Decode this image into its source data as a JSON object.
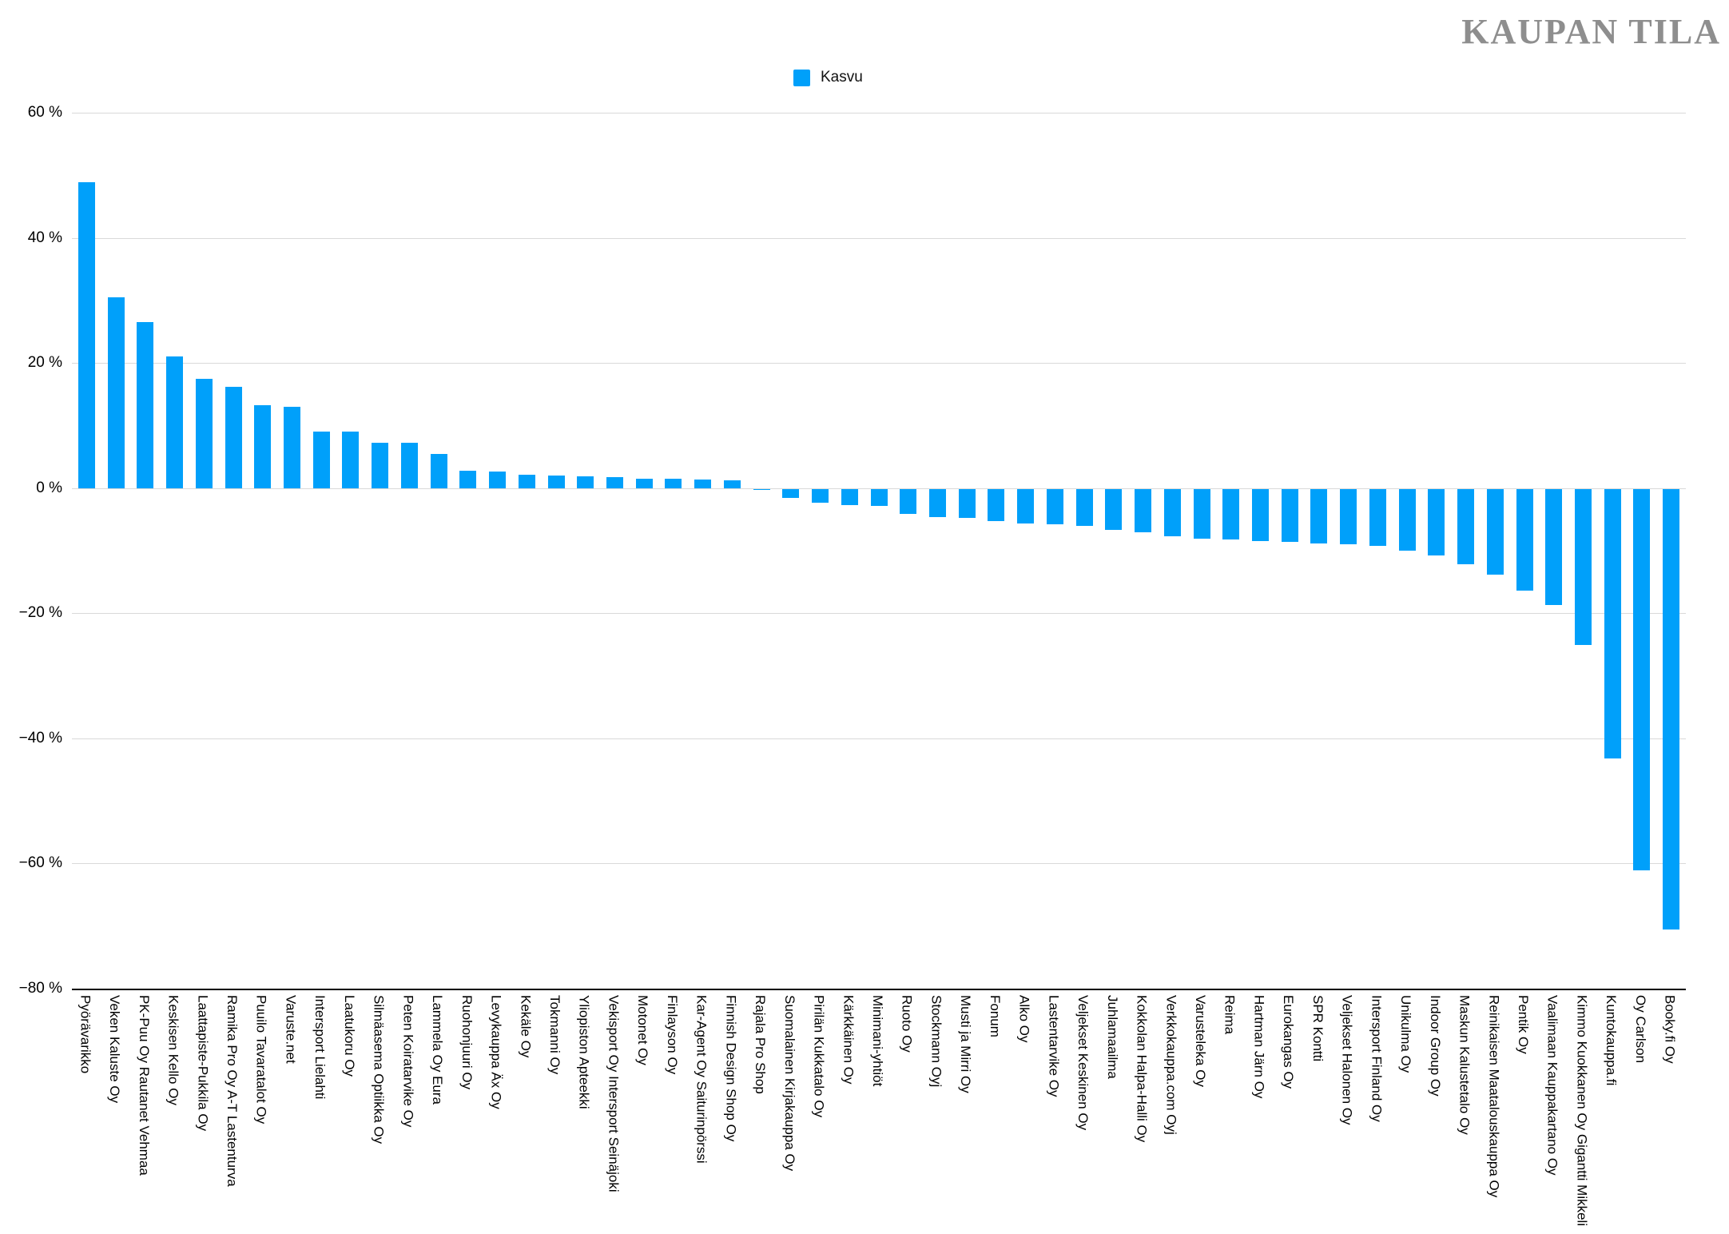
{
  "brand": {
    "title": "KAUPAN TILA"
  },
  "legend": {
    "label": "Kasvu",
    "swatch_color": "#00A0FA"
  },
  "colors": {
    "bar": "#00A0FA",
    "gridline": "#d9d9d9",
    "axis_line": "#000000",
    "title_gray": "#8e8e8e"
  },
  "chart_data": {
    "type": "bar",
    "title": "KAUPAN TILA",
    "legend_entries": [
      "Kasvu"
    ],
    "legend_position": "top-center",
    "grid": true,
    "xlabel": "",
    "ylabel": "",
    "ylim": [
      -80,
      60
    ],
    "yticks": [
      {
        "label": "60 %",
        "value": 60
      },
      {
        "label": "40 %",
        "value": 40
      },
      {
        "label": "20 %",
        "value": 20
      },
      {
        "label": "0 %",
        "value": 0
      },
      {
        "label": "−20 %",
        "value": -20
      },
      {
        "label": "−40 %",
        "value": -40
      },
      {
        "label": "−60 %",
        "value": -60
      },
      {
        "label": "−80 %",
        "value": -80
      }
    ],
    "categories": [
      "Pyörävarikko",
      "Veken Kaluste Oy",
      "PK-Puu Oy Rautanet Vehmaa",
      "Keskisen Kello Oy",
      "Laattapiste-Pukkila Oy",
      "Ramika Pro Oy A-T Lastenturva",
      "Puuilo Tavaratalot Oy",
      "Varuste.net",
      "Intersport Lielahti",
      "Laatukoru Oy",
      "Silmäasema Optiikka Oy",
      "Peten Koiratarvike Oy",
      "Lammela Oy Eura",
      "Ruohonjuuri Oy",
      "Levykauppa Äx Oy",
      "Kekäle Oy",
      "Tokmanni Oy",
      "Yliopiston Apteekki",
      "Vekisport Oy Intersport Seinäjoki",
      "Motonet Oy",
      "Finlayson Oy",
      "Kar-Agent Oy Saiturinpörssi",
      "Finnish Design Shop Oy",
      "Rajala Pro Shop",
      "Suomalainen Kirjakauppa Oy",
      "Pirilän Kukkatalo Oy",
      "Kärkkäinen Oy",
      "Minimani-yhtiöt",
      "Ruoto Oy",
      "Stockmann Oyj",
      "Musti ja Mirri Oy",
      "Fonum",
      "Alko Oy",
      "Lastentarvike Oy",
      "Veljekset Keskinen Oy",
      "Juhlamaailma",
      "Kokkolan Halpa-Halli Oy",
      "Verkkokauppa.com Oyj",
      "Varusteleka Oy",
      "Reima",
      "Hartman Järn Oy",
      "Eurokangas Oy",
      "SPR Kontti",
      "Veljekset Halonen Oy",
      "Intersport Finland Oy",
      "Unikulma Oy",
      "Indoor Group Oy",
      "Maskun Kalustetalo Oy",
      "Reinikaisen Maatalouskauppa Oy",
      "Pentik Oy",
      "Vaalimaan Kauppakartano Oy",
      "Kimmo Kuokkanen Oy Gigantti Mikkeli",
      "Kuntokauppa.fi",
      "Oy Carlson",
      "Booky.fi Oy"
    ],
    "series": [
      {
        "name": "Kasvu",
        "values": [
          48.9,
          30.5,
          26.5,
          21,
          17.4,
          16.2,
          13.3,
          13,
          9,
          9,
          7.3,
          7.2,
          5.5,
          2.8,
          2.7,
          2.1,
          2,
          1.9,
          1.7,
          1.5,
          1.5,
          1.4,
          1.2,
          -0.2,
          -1.4,
          -2.2,
          -2.6,
          -2.7,
          -4,
          -4.5,
          -4.7,
          -5.2,
          -5.5,
          -5.7,
          -5.9,
          -6.6,
          -6.9,
          -7.6,
          -7.9,
          -8.1,
          -8.3,
          -8.5,
          -8.7,
          -8.9,
          -9.1,
          -9.9,
          -10.7,
          -12,
          -13.7,
          -16.3,
          -18.6,
          -24.9,
          -43.1,
          -61,
          -70.4
        ]
      }
    ]
  }
}
